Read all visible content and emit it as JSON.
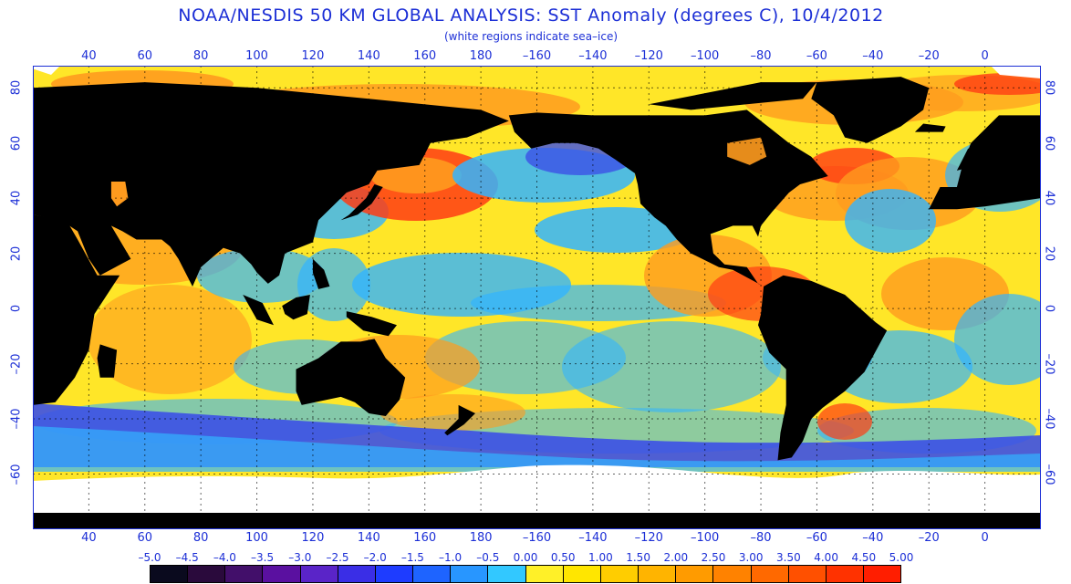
{
  "title": "NOAA/NESDIS 50 KM GLOBAL ANALYSIS: SST Anomaly (degrees C), 10/4/2012",
  "subtitle": "(white regions indicate sea–ice)",
  "longitude_labels": [
    "40",
    "60",
    "80",
    "100",
    "120",
    "140",
    "160",
    "180",
    "–160",
    "–140",
    "–120",
    "–100",
    "–80",
    "–60",
    "–40",
    "–20",
    "0"
  ],
  "latitude_labels": [
    "80",
    "60",
    "40",
    "20",
    "0",
    "–20",
    "–40",
    "–60"
  ],
  "colorbar": {
    "labels": [
      "–5.0",
      "–4.5",
      "–4.0",
      "–3.5",
      "–3.0",
      "–2.5",
      "–2.0",
      "–1.5",
      "–1.0",
      "–0.5",
      "0.00",
      "0.50",
      "1.00",
      "1.50",
      "2.00",
      "2.50",
      "3.00",
      "3.50",
      "4.00",
      "4.50",
      "5.00"
    ],
    "colors": [
      "#0a0a1e",
      "#2a0a3c",
      "#420f6a",
      "#5a10a0",
      "#5a24c8",
      "#3a2ee6",
      "#1e3cff",
      "#1e64ff",
      "#2896ff",
      "#32c8ff",
      "#fff028",
      "#ffe600",
      "#ffcd00",
      "#ffb400",
      "#ff9b00",
      "#ff8200",
      "#ff6900",
      "#ff5000",
      "#ff3200",
      "#ff1e00"
    ]
  },
  "map_colors": {
    "land": "#000000",
    "sea_ice": "#ffffff",
    "warm": "#ff9b1e",
    "neutral": "#ffe628",
    "cool": "#32b4ff",
    "cold": "#3c50e6",
    "hot": "#ff3c14"
  }
}
